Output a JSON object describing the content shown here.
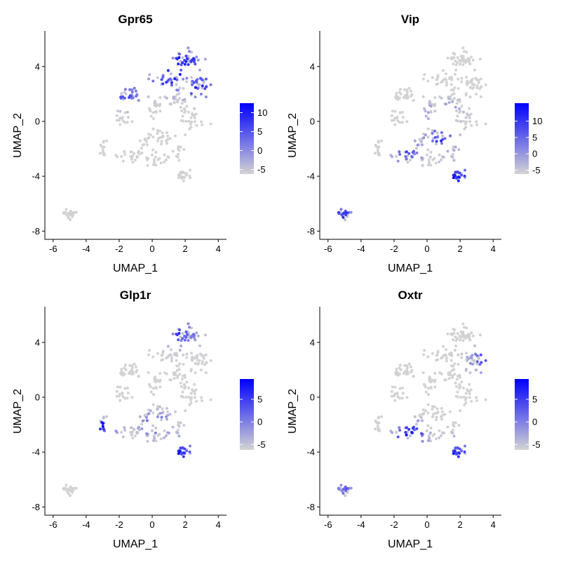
{
  "chart_data": [
    {
      "type": "scatter",
      "title": "Gpr65",
      "xlabel": "UMAP_1",
      "ylabel": "UMAP_2",
      "xlim": [
        -6.5,
        4.5
      ],
      "ylim": [
        -8.6,
        6.6
      ],
      "xticks": [
        "-6",
        "-4",
        "-2",
        "0",
        "2",
        "4"
      ],
      "yticks": [
        "-8",
        "-4",
        "0",
        "4"
      ],
      "legend": {
        "min": -6.2,
        "max": 12.5,
        "ticks": [
          "10",
          "5",
          "0",
          "-5"
        ]
      },
      "low_color": "#d3d3d3",
      "high_color": "#0000ff",
      "hotspots": [
        [
          2.0,
          4.3,
          0.95
        ],
        [
          2.8,
          2.5,
          0.85
        ],
        [
          0.8,
          2.8,
          0.75
        ],
        [
          -1.6,
          2.0,
          0.6
        ],
        [
          1.4,
          3.6,
          0.9
        ]
      ]
    },
    {
      "type": "scatter",
      "title": "Vip",
      "xlabel": "UMAP_1",
      "ylabel": "UMAP_2",
      "xlim": [
        -6.5,
        4.5
      ],
      "ylim": [
        -8.6,
        6.6
      ],
      "xticks": [
        "-6",
        "-4",
        "-2",
        "0",
        "2",
        "4"
      ],
      "yticks": [
        "-8",
        "-4",
        "0",
        "4"
      ],
      "legend": {
        "min": -6.2,
        "max": 15.5,
        "ticks": [
          "10",
          "5",
          "0",
          "-5"
        ]
      },
      "low_color": "#d3d3d3",
      "high_color": "#0000ff",
      "hotspots": [
        [
          1.8,
          -4.0,
          0.95
        ],
        [
          -5.3,
          -7.0,
          0.85
        ],
        [
          0.8,
          -1.3,
          0.7
        ],
        [
          -1.2,
          -2.2,
          0.6
        ],
        [
          1.0,
          0.5,
          0.55
        ]
      ]
    },
    {
      "type": "scatter",
      "title": "Glp1r",
      "xlabel": "UMAP_1",
      "ylabel": "UMAP_2",
      "xlim": [
        -6.5,
        4.5
      ],
      "ylim": [
        -8.6,
        6.6
      ],
      "xticks": [
        "-6",
        "-4",
        "-2",
        "0",
        "2",
        "4"
      ],
      "yticks": [
        "-8",
        "-4",
        "0",
        "4"
      ],
      "legend": {
        "min": -6.2,
        "max": 9.5,
        "ticks": [
          "5",
          "0",
          "-5"
        ]
      },
      "low_color": "#d3d3d3",
      "high_color": "#0000ff",
      "hotspots": [
        [
          1.6,
          -3.9,
          0.95
        ],
        [
          -3.0,
          -2.0,
          0.9
        ],
        [
          1.8,
          4.6,
          0.7
        ],
        [
          0.2,
          -2.0,
          0.6
        ]
      ]
    },
    {
      "type": "scatter",
      "title": "Oxtr",
      "xlabel": "UMAP_1",
      "ylabel": "UMAP_2",
      "xlim": [
        -6.5,
        4.5
      ],
      "ylim": [
        -8.6,
        6.6
      ],
      "xticks": [
        "-6",
        "-4",
        "-2",
        "0",
        "2",
        "4"
      ],
      "yticks": [
        "-8",
        "-4",
        "0",
        "4"
      ],
      "legend": {
        "min": -6.2,
        "max": 9.5,
        "ticks": [
          "5",
          "0",
          "-5"
        ]
      },
      "low_color": "#d3d3d3",
      "high_color": "#0000ff",
      "hotspots": [
        [
          -1.0,
          -2.8,
          0.95
        ],
        [
          1.8,
          -4.0,
          0.85
        ],
        [
          3.4,
          2.7,
          0.6
        ],
        [
          -5.0,
          -6.8,
          0.5
        ]
      ]
    }
  ]
}
